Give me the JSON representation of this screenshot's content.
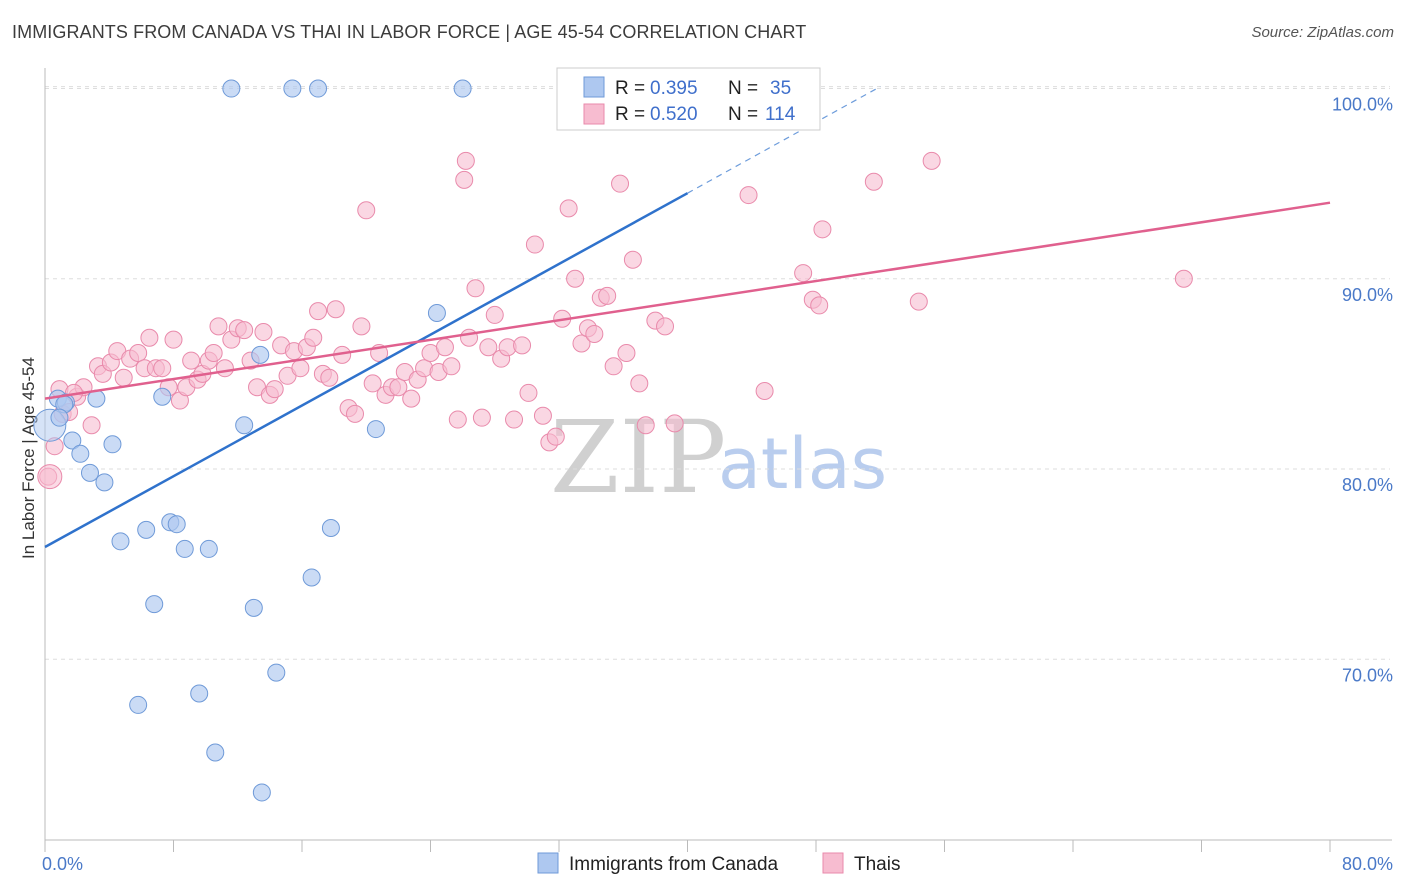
{
  "title": "IMMIGRANTS FROM CANADA VS THAI IN LABOR FORCE | AGE 45-54 CORRELATION CHART",
  "source": "Source: ZipAtlas.com",
  "watermark": {
    "zip": "ZIP",
    "atlas": "atlas"
  },
  "legend": {
    "rows": [
      {
        "r_label": "R =",
        "r_value": "0.395",
        "n_label": "N =",
        "n_value": "35"
      },
      {
        "r_label": "R =",
        "r_value": "0.520",
        "n_label": "N =",
        "n_value": "114"
      }
    ]
  },
  "bottom_legend": {
    "series1": "Immigrants from Canada",
    "series2": "Thais"
  },
  "colors": {
    "blue_fill": "#aec8f0",
    "blue_stroke": "#6f9ad8",
    "blue_line": "#2f72cc",
    "pink_fill": "#f7bcd0",
    "pink_stroke": "#e98aab",
    "pink_line": "#e0608e",
    "grid": "#dddddd",
    "axis_text": "#4a79c8"
  },
  "chart_data": {
    "type": "scatter",
    "title": "IMMIGRANTS FROM CANADA VS THAI IN LABOR FORCE | AGE 45-54 CORRELATION CHART",
    "xlabel": "",
    "ylabel": "In Labor Force | Age 45-54",
    "xlim": [
      0,
      80
    ],
    "ylim": [
      60.5,
      101.5
    ],
    "x_tick_labels": [
      "0.0%",
      "80.0%"
    ],
    "y_ticks": [
      70,
      80,
      90,
      100
    ],
    "y_tick_labels": [
      "70.0%",
      "80.0%",
      "90.0%",
      "100.0%"
    ],
    "grid": true,
    "legend_position": "top-center",
    "series": [
      {
        "name": "Immigrants from Canada",
        "r": 0.395,
        "n": 35,
        "trend": {
          "x0": 0,
          "y0": 75.9,
          "x1": 40,
          "y1": 94.5,
          "dashed_to_x": 52,
          "dashed_to_y": 100.1
        },
        "points": [
          [
            0.3,
            82.3
          ],
          [
            0.8,
            83.7
          ],
          [
            1.3,
            83.5
          ],
          [
            1.7,
            81.5
          ],
          [
            2.2,
            80.8
          ],
          [
            2.8,
            79.8
          ],
          [
            3.2,
            83.7
          ],
          [
            3.7,
            79.3
          ],
          [
            4.2,
            81.3
          ],
          [
            4.7,
            76.2
          ],
          [
            6.3,
            76.8
          ],
          [
            6.8,
            72.9
          ],
          [
            7.3,
            83.8
          ],
          [
            7.8,
            77.2
          ],
          [
            8.2,
            77.1
          ],
          [
            8.7,
            75.8
          ],
          [
            10.2,
            75.8
          ],
          [
            5.8,
            67.6
          ],
          [
            9.6,
            68.2
          ],
          [
            10.6,
            65.1
          ],
          [
            13.5,
            63.0
          ],
          [
            11.6,
            100.0
          ],
          [
            15.4,
            100.0
          ],
          [
            17.0,
            100.0
          ],
          [
            26.0,
            100.0
          ],
          [
            12.4,
            82.3
          ],
          [
            13.0,
            72.7
          ],
          [
            13.4,
            86.0
          ],
          [
            14.4,
            69.3
          ],
          [
            16.6,
            74.3
          ],
          [
            17.8,
            76.9
          ],
          [
            20.6,
            82.1
          ],
          [
            24.4,
            88.2
          ],
          [
            1.2,
            83.4
          ],
          [
            0.9,
            82.7
          ]
        ]
      },
      {
        "name": "Thais",
        "r": 0.52,
        "n": 114,
        "trend": {
          "x0": 0,
          "y0": 83.7,
          "x1": 80,
          "y1": 94.0
        },
        "points": [
          [
            0.2,
            79.6
          ],
          [
            0.6,
            81.2
          ],
          [
            1.1,
            82.9
          ],
          [
            1.5,
            83.0
          ],
          [
            2.0,
            83.8
          ],
          [
            2.4,
            84.3
          ],
          [
            2.9,
            82.3
          ],
          [
            3.3,
            85.4
          ],
          [
            3.6,
            85.0
          ],
          [
            4.1,
            85.6
          ],
          [
            4.5,
            86.2
          ],
          [
            4.9,
            84.8
          ],
          [
            5.3,
            85.8
          ],
          [
            5.8,
            86.1
          ],
          [
            6.2,
            85.3
          ],
          [
            6.5,
            86.9
          ],
          [
            6.9,
            85.3
          ],
          [
            7.3,
            85.3
          ],
          [
            7.7,
            84.3
          ],
          [
            8.0,
            86.8
          ],
          [
            8.4,
            83.6
          ],
          [
            8.8,
            84.3
          ],
          [
            9.1,
            85.7
          ],
          [
            9.5,
            84.7
          ],
          [
            9.8,
            85.0
          ],
          [
            10.2,
            85.7
          ],
          [
            10.5,
            86.1
          ],
          [
            10.8,
            87.5
          ],
          [
            11.2,
            85.3
          ],
          [
            11.6,
            86.8
          ],
          [
            12.0,
            87.4
          ],
          [
            12.4,
            87.3
          ],
          [
            12.8,
            85.7
          ],
          [
            13.2,
            84.3
          ],
          [
            13.6,
            87.2
          ],
          [
            14.0,
            83.9
          ],
          [
            14.3,
            84.2
          ],
          [
            14.7,
            86.5
          ],
          [
            15.1,
            84.9
          ],
          [
            15.5,
            86.2
          ],
          [
            15.9,
            85.3
          ],
          [
            16.3,
            86.4
          ],
          [
            16.7,
            86.9
          ],
          [
            17.0,
            88.3
          ],
          [
            17.3,
            85.0
          ],
          [
            17.7,
            84.8
          ],
          [
            18.1,
            88.4
          ],
          [
            18.5,
            86.0
          ],
          [
            18.9,
            83.2
          ],
          [
            19.3,
            82.9
          ],
          [
            19.7,
            87.5
          ],
          [
            20.0,
            93.6
          ],
          [
            20.4,
            84.5
          ],
          [
            20.8,
            86.1
          ],
          [
            21.2,
            83.9
          ],
          [
            21.6,
            84.3
          ],
          [
            22.0,
            84.3
          ],
          [
            22.4,
            85.1
          ],
          [
            22.8,
            83.7
          ],
          [
            23.2,
            84.7
          ],
          [
            23.6,
            85.3
          ],
          [
            24.0,
            86.1
          ],
          [
            24.5,
            85.1
          ],
          [
            24.9,
            86.4
          ],
          [
            25.3,
            85.4
          ],
          [
            25.7,
            82.6
          ],
          [
            26.1,
            95.2
          ],
          [
            26.4,
            86.9
          ],
          [
            26.8,
            89.5
          ],
          [
            27.2,
            82.7
          ],
          [
            27.6,
            86.4
          ],
          [
            28.0,
            88.1
          ],
          [
            28.4,
            85.8
          ],
          [
            28.8,
            86.4
          ],
          [
            29.2,
            82.6
          ],
          [
            29.7,
            86.5
          ],
          [
            30.1,
            84.0
          ],
          [
            30.5,
            91.8
          ],
          [
            31.0,
            82.8
          ],
          [
            31.4,
            81.4
          ],
          [
            31.8,
            81.7
          ],
          [
            32.2,
            87.9
          ],
          [
            32.6,
            93.7
          ],
          [
            33.0,
            90.0
          ],
          [
            33.4,
            86.6
          ],
          [
            33.8,
            87.4
          ],
          [
            34.2,
            87.1
          ],
          [
            34.6,
            89.0
          ],
          [
            35.0,
            89.1
          ],
          [
            35.4,
            85.4
          ],
          [
            35.8,
            95.0
          ],
          [
            36.2,
            86.1
          ],
          [
            36.6,
            91.0
          ],
          [
            37.0,
            84.5
          ],
          [
            37.4,
            82.3
          ],
          [
            38.0,
            87.8
          ],
          [
            38.6,
            87.5
          ],
          [
            39.2,
            82.4
          ],
          [
            43.8,
            94.4
          ],
          [
            44.8,
            84.1
          ],
          [
            47.2,
            90.3
          ],
          [
            47.8,
            88.9
          ],
          [
            48.2,
            88.6
          ],
          [
            48.4,
            92.6
          ],
          [
            51.6,
            95.1
          ],
          [
            54.4,
            88.8
          ],
          [
            55.2,
            96.2
          ],
          [
            70.9,
            90.0
          ],
          [
            26.2,
            96.2
          ],
          [
            42.1,
            100.0
          ],
          [
            0.9,
            84.2
          ],
          [
            1.8,
            84.0
          ]
        ]
      }
    ]
  }
}
